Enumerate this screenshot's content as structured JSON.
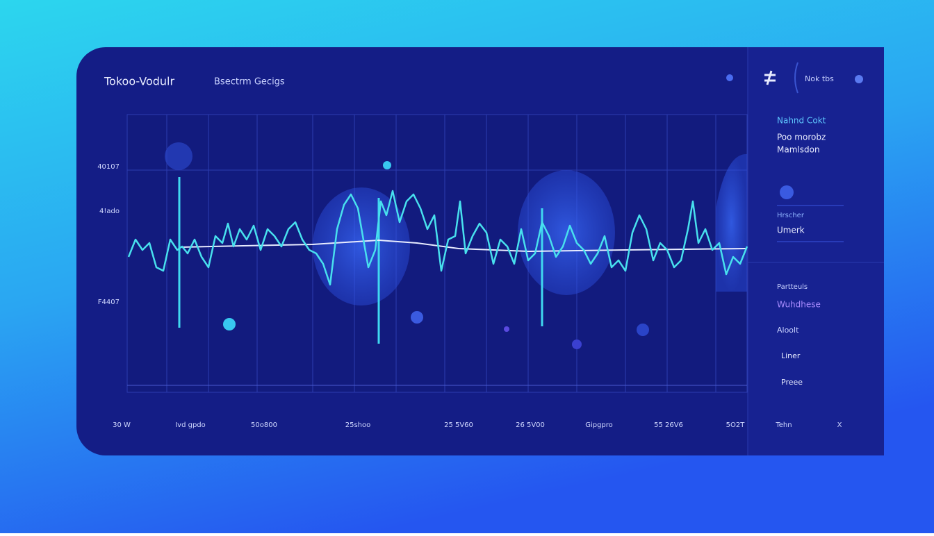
{
  "header": {
    "title": "Tokoo-Vodulr",
    "subtitle": "Bsectrm Gecigs"
  },
  "y_labels": [
    "40107",
    "4!ado",
    "F4407"
  ],
  "x_labels": [
    "30 W",
    "Ivd gpdo",
    "50o800",
    "25shoo",
    "25 5V60",
    "26 5V00",
    "Gipgpro",
    "55 26V6",
    "5O2T",
    "Tehn",
    "X"
  ],
  "side_panel": {
    "heading": "Nahnd Cokt",
    "lines": [
      "Poo morobz",
      "Mamlsdon"
    ],
    "fields": [
      "Hrscher",
      "Umerk"
    ],
    "section": "Partteuls",
    "items": [
      "Wuhdhese",
      "Aloolt",
      "Liner",
      "Preee"
    ]
  },
  "toolbar": {
    "label": "Nok tbs"
  }
}
